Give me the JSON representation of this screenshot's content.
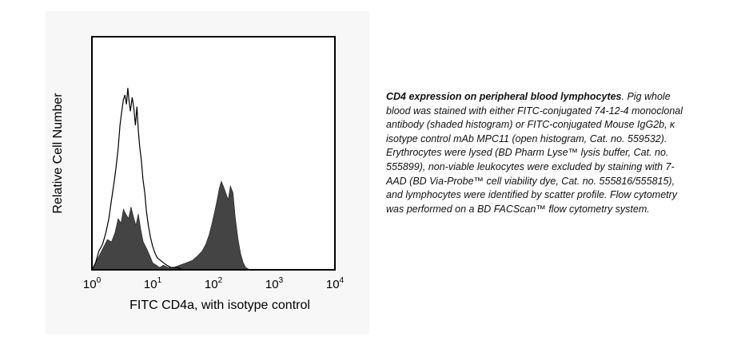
{
  "chart_data": {
    "type": "area",
    "xscale": "log",
    "xlim": [
      1,
      10000
    ],
    "ylim": [
      0,
      100
    ],
    "xlabel": "FITC CD4a, with isotype control",
    "ylabel": "Relative Cell Number",
    "xticks": [
      {
        "base": "10",
        "exp": "0"
      },
      {
        "base": "10",
        "exp": "1"
      },
      {
        "base": "10",
        "exp": "2"
      },
      {
        "base": "10",
        "exp": "3"
      },
      {
        "base": "10",
        "exp": "4"
      }
    ],
    "grid": false,
    "series": [
      {
        "style": "filled",
        "fill": "#444444",
        "x": [
          1.0,
          1.2,
          1.5,
          1.8,
          2.1,
          2.4,
          2.7,
          3.0,
          3.3,
          3.6,
          4.0,
          4.4,
          4.8,
          5.3,
          5.8,
          6.4,
          7.0,
          8.0,
          9.0,
          10.0,
          11.5,
          13,
          15,
          18,
          22,
          28,
          36,
          45,
          55,
          65,
          75,
          85,
          95,
          105,
          115,
          125,
          135,
          145,
          160,
          175,
          190,
          210,
          230,
          255,
          280,
          310,
          340,
          400
        ],
        "y": [
          0,
          4,
          9,
          13,
          12,
          16,
          22,
          20,
          26,
          24,
          22,
          27,
          23,
          19,
          24,
          17,
          12,
          9,
          6,
          3,
          2,
          1,
          2,
          1,
          1,
          2,
          3,
          4,
          6,
          8,
          11,
          15,
          20,
          25,
          30,
          35,
          38,
          36,
          33,
          30,
          36,
          33,
          22,
          13,
          7,
          3,
          1,
          0
        ]
      },
      {
        "style": "outline",
        "stroke": "#000000",
        "x": [
          1.0,
          1.15,
          1.3,
          1.5,
          1.7,
          1.9,
          2.1,
          2.3,
          2.5,
          2.7,
          2.9,
          3.1,
          3.3,
          3.5,
          3.7,
          3.9,
          4.1,
          4.3,
          4.6,
          4.9,
          5.2,
          5.5,
          5.8,
          6.1,
          6.5,
          6.9,
          7.4,
          7.9,
          8.5,
          9.2,
          10,
          11,
          12,
          13.5,
          15,
          17,
          20,
          25,
          32,
          40,
          50
        ],
        "y": [
          0,
          3,
          8,
          11,
          16,
          22,
          30,
          37,
          44,
          52,
          62,
          68,
          73,
          75,
          71,
          78,
          72,
          68,
          74,
          69,
          62,
          70,
          60,
          53,
          47,
          39,
          33,
          25,
          19,
          14,
          10,
          7,
          5,
          4,
          3,
          2,
          1,
          1,
          0,
          0,
          0
        ]
      }
    ]
  },
  "caption": {
    "title": "CD4 expression on peripheral blood lymphocytes",
    "body": ". Pig whole blood was stained with either FITC-conjugated 74-12-4 monoclonal antibody (shaded histogram) or FITC-conjugated Mouse IgG2b, κ isotype control mAb MPC11 (open histogram, Cat. no. 559532). Erythrocytes were lysed (BD Pharm Lyse™ lysis buffer, Cat. no. 555899), non-viable leukocytes were excluded by staining with 7-AAD (BD Via-Probe™ cell viability dye, Cat. no. 555816/555815), and lymphocytes were identified by scatter profile. Flow cytometry was performed on a BD FACScan™ flow cytometry system."
  }
}
